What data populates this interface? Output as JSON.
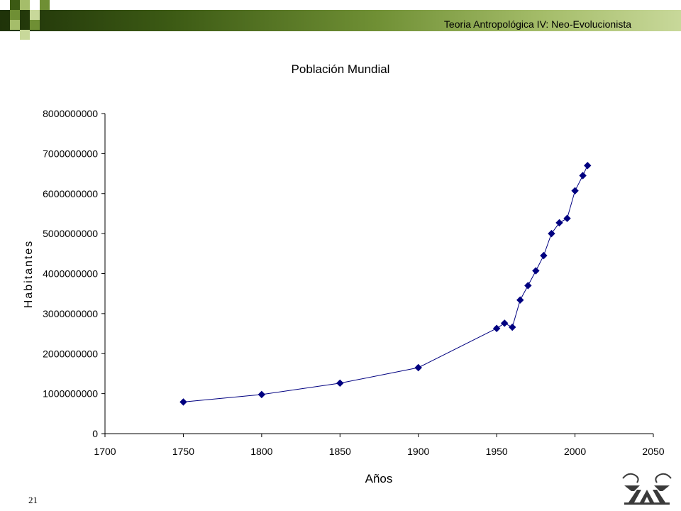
{
  "header": {
    "title": "Teoria Antropológica IV: Neo-Evolucionista"
  },
  "page_number": "21",
  "colors": {
    "header_dark": "#1f3309",
    "header_light": "#c8d89a",
    "series": "#000080",
    "square_dark": "#3c5a14",
    "square_light": "#a5bd6a"
  },
  "logo": {
    "icon": "uam-logo-icon"
  },
  "chart_data": {
    "type": "line",
    "title": "Población Mundial",
    "xlabel": "Años",
    "ylabel": "Habitantes",
    "xlim": [
      1700,
      2050
    ],
    "ylim": [
      0,
      8000000000
    ],
    "xticks": [
      1700,
      1750,
      1800,
      1850,
      1900,
      1950,
      2000,
      2050
    ],
    "yticks": [
      0,
      1000000000,
      2000000000,
      3000000000,
      4000000000,
      5000000000,
      6000000000,
      7000000000,
      8000000000
    ],
    "xtick_labels": [
      "1700",
      "1750",
      "1800",
      "1850",
      "1900",
      "1950",
      "2000",
      "2050"
    ],
    "ytick_labels": [
      "0",
      "1000000000",
      "2000000000",
      "3000000000",
      "4000000000",
      "5000000000",
      "6000000000",
      "7000000000",
      "8000000000"
    ],
    "grid": false,
    "legend": "none",
    "series": [
      {
        "x": [
          1750,
          1800,
          1850,
          1900,
          1950,
          1955,
          1960,
          1965,
          1970,
          1975,
          1980,
          1985,
          1990,
          1995,
          2000,
          2005,
          2008
        ],
        "y": [
          791000000,
          978000000,
          1262000000,
          1650000000,
          2630000000,
          2760000000,
          2660000000,
          3340000000,
          3700000000,
          4070000000,
          4450000000,
          5000000000,
          5270000000,
          5380000000,
          6070000000,
          6450000000,
          6700000000
        ]
      }
    ]
  }
}
